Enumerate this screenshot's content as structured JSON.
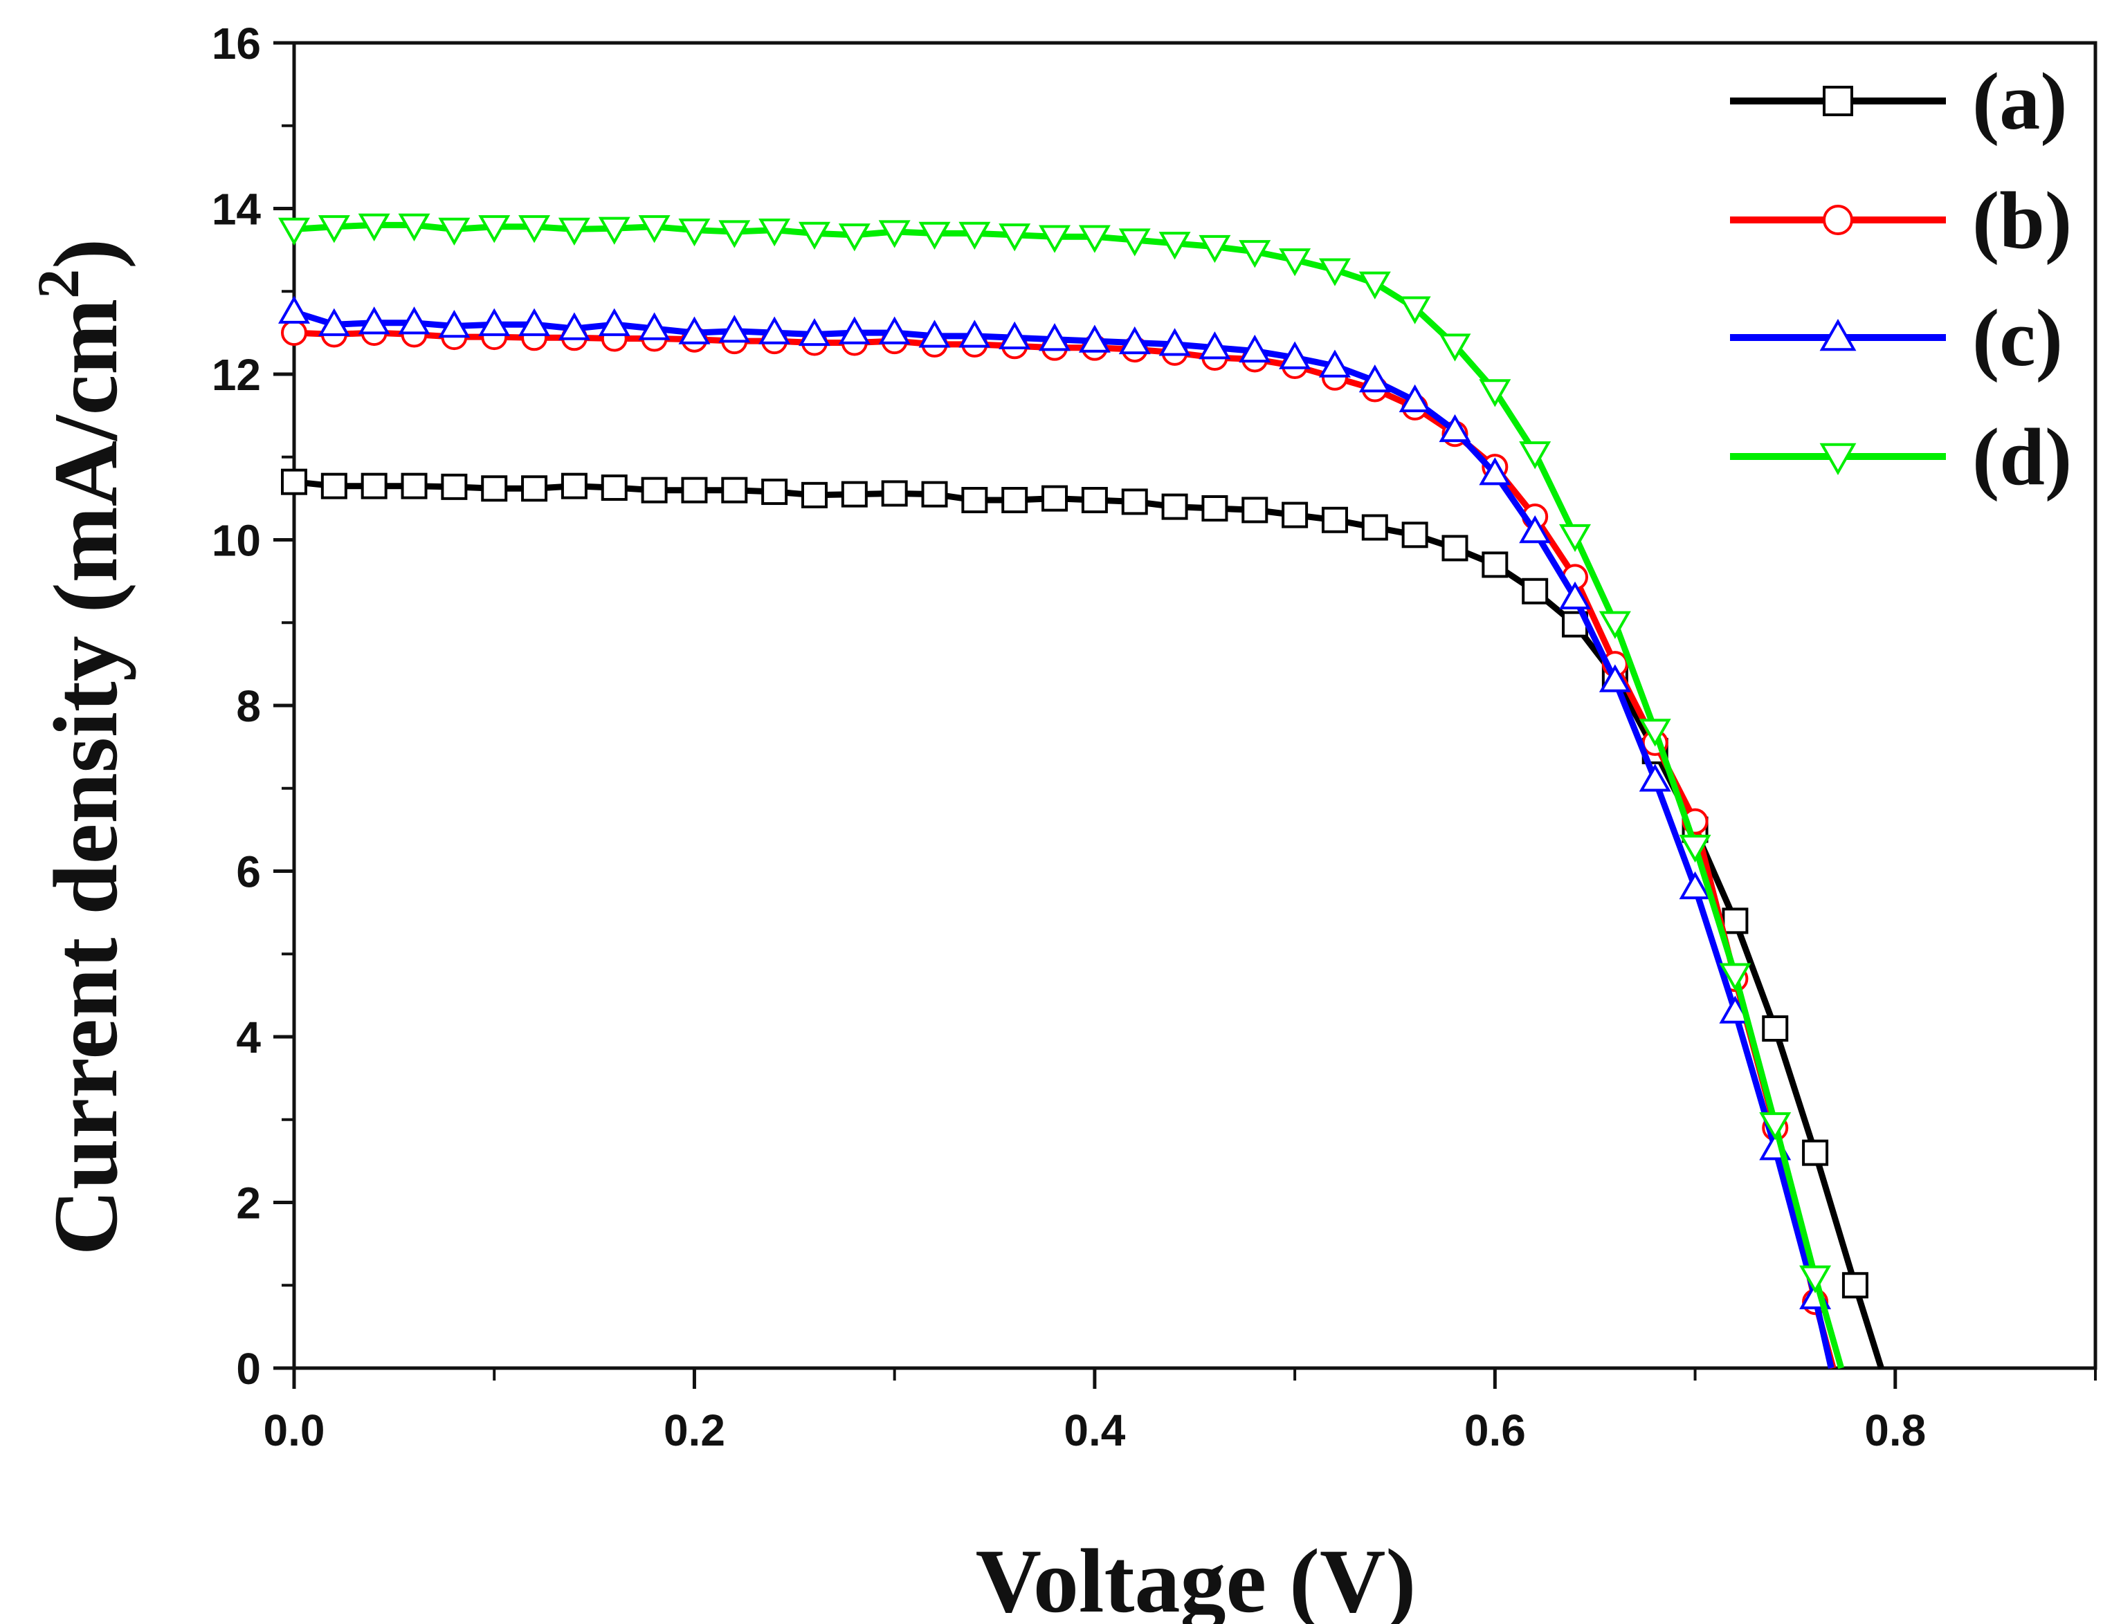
{
  "chart_data": {
    "type": "line",
    "title": "",
    "xlabel": "Voltage (V)",
    "ylabel": "Current density (mA/cm",
    "ylabel_superscript": "2",
    "ylabel_close": ")",
    "xlim": [
      0.0,
      0.9
    ],
    "ylim": [
      0,
      16
    ],
    "xticks": [
      "0.0",
      "0.2",
      "0.4",
      "0.6",
      "0.8"
    ],
    "yticks": [
      "0",
      "2",
      "4",
      "6",
      "8",
      "10",
      "12",
      "14",
      "16"
    ],
    "legend_position": "top-right",
    "series": [
      {
        "name": "(a)",
        "color": "#000000",
        "marker": "square",
        "x": [
          0.0,
          0.02,
          0.04,
          0.06,
          0.08,
          0.1,
          0.12,
          0.14,
          0.16,
          0.18,
          0.2,
          0.22,
          0.24,
          0.26,
          0.28,
          0.3,
          0.32,
          0.34,
          0.36,
          0.38,
          0.4,
          0.42,
          0.44,
          0.46,
          0.48,
          0.5,
          0.52,
          0.54,
          0.56,
          0.58,
          0.6,
          0.62,
          0.64,
          0.66,
          0.68,
          0.7,
          0.72,
          0.74,
          0.76,
          0.78,
          0.793
        ],
        "y": [
          10.7,
          10.65,
          10.65,
          10.65,
          10.64,
          10.62,
          10.62,
          10.65,
          10.63,
          10.6,
          10.6,
          10.6,
          10.58,
          10.54,
          10.55,
          10.56,
          10.55,
          10.48,
          10.48,
          10.5,
          10.48,
          10.46,
          10.4,
          10.38,
          10.36,
          10.3,
          10.24,
          10.15,
          10.06,
          9.9,
          9.7,
          9.38,
          8.98,
          8.35,
          7.45,
          6.5,
          5.4,
          4.1,
          2.6,
          1.0,
          0.0
        ]
      },
      {
        "name": "(b)",
        "color": "#ff0000",
        "marker": "circle",
        "x": [
          0.0,
          0.02,
          0.04,
          0.06,
          0.08,
          0.1,
          0.12,
          0.14,
          0.16,
          0.18,
          0.2,
          0.22,
          0.24,
          0.26,
          0.28,
          0.3,
          0.32,
          0.34,
          0.36,
          0.38,
          0.4,
          0.42,
          0.44,
          0.46,
          0.48,
          0.5,
          0.52,
          0.54,
          0.56,
          0.58,
          0.6,
          0.62,
          0.64,
          0.66,
          0.68,
          0.7,
          0.72,
          0.74,
          0.76,
          0.769
        ],
        "y": [
          12.5,
          12.48,
          12.5,
          12.48,
          12.45,
          12.45,
          12.44,
          12.44,
          12.43,
          12.43,
          12.42,
          12.4,
          12.4,
          12.38,
          12.38,
          12.4,
          12.36,
          12.36,
          12.34,
          12.32,
          12.32,
          12.3,
          12.26,
          12.2,
          12.18,
          12.1,
          11.96,
          11.82,
          11.6,
          11.28,
          10.88,
          10.28,
          9.55,
          8.5,
          7.55,
          6.6,
          4.7,
          2.9,
          0.8,
          0.0
        ]
      },
      {
        "name": "(c)",
        "color": "#0000ff",
        "marker": "triangle-up",
        "x": [
          0.0,
          0.02,
          0.04,
          0.06,
          0.08,
          0.1,
          0.12,
          0.14,
          0.16,
          0.18,
          0.2,
          0.22,
          0.24,
          0.26,
          0.28,
          0.3,
          0.32,
          0.34,
          0.36,
          0.38,
          0.4,
          0.42,
          0.44,
          0.46,
          0.48,
          0.5,
          0.52,
          0.54,
          0.56,
          0.58,
          0.6,
          0.62,
          0.64,
          0.66,
          0.68,
          0.7,
          0.72,
          0.74,
          0.76,
          0.768
        ],
        "y": [
          12.75,
          12.6,
          12.62,
          12.62,
          12.58,
          12.6,
          12.6,
          12.55,
          12.6,
          12.55,
          12.5,
          12.52,
          12.5,
          12.48,
          12.5,
          12.5,
          12.46,
          12.46,
          12.44,
          12.42,
          12.4,
          12.38,
          12.36,
          12.32,
          12.28,
          12.2,
          12.1,
          11.92,
          11.68,
          11.32,
          10.8,
          10.1,
          9.3,
          8.3,
          7.1,
          5.8,
          4.3,
          2.65,
          0.85,
          0.0
        ]
      },
      {
        "name": "(d)",
        "color": "#00ee00",
        "marker": "triangle-down",
        "x": [
          0.0,
          0.02,
          0.04,
          0.06,
          0.08,
          0.1,
          0.12,
          0.14,
          0.16,
          0.18,
          0.2,
          0.22,
          0.24,
          0.26,
          0.28,
          0.3,
          0.32,
          0.34,
          0.36,
          0.38,
          0.4,
          0.42,
          0.44,
          0.46,
          0.48,
          0.5,
          0.52,
          0.54,
          0.56,
          0.58,
          0.6,
          0.62,
          0.64,
          0.66,
          0.68,
          0.7,
          0.72,
          0.74,
          0.76,
          0.773
        ],
        "y": [
          13.75,
          13.78,
          13.8,
          13.8,
          13.75,
          13.78,
          13.78,
          13.75,
          13.76,
          13.78,
          13.74,
          13.72,
          13.74,
          13.7,
          13.68,
          13.72,
          13.7,
          13.7,
          13.68,
          13.66,
          13.66,
          13.62,
          13.58,
          13.54,
          13.48,
          13.38,
          13.26,
          13.1,
          12.8,
          12.35,
          11.8,
          11.05,
          10.05,
          9.0,
          7.7,
          6.3,
          4.75,
          2.95,
          1.1,
          0.0
        ]
      }
    ]
  }
}
